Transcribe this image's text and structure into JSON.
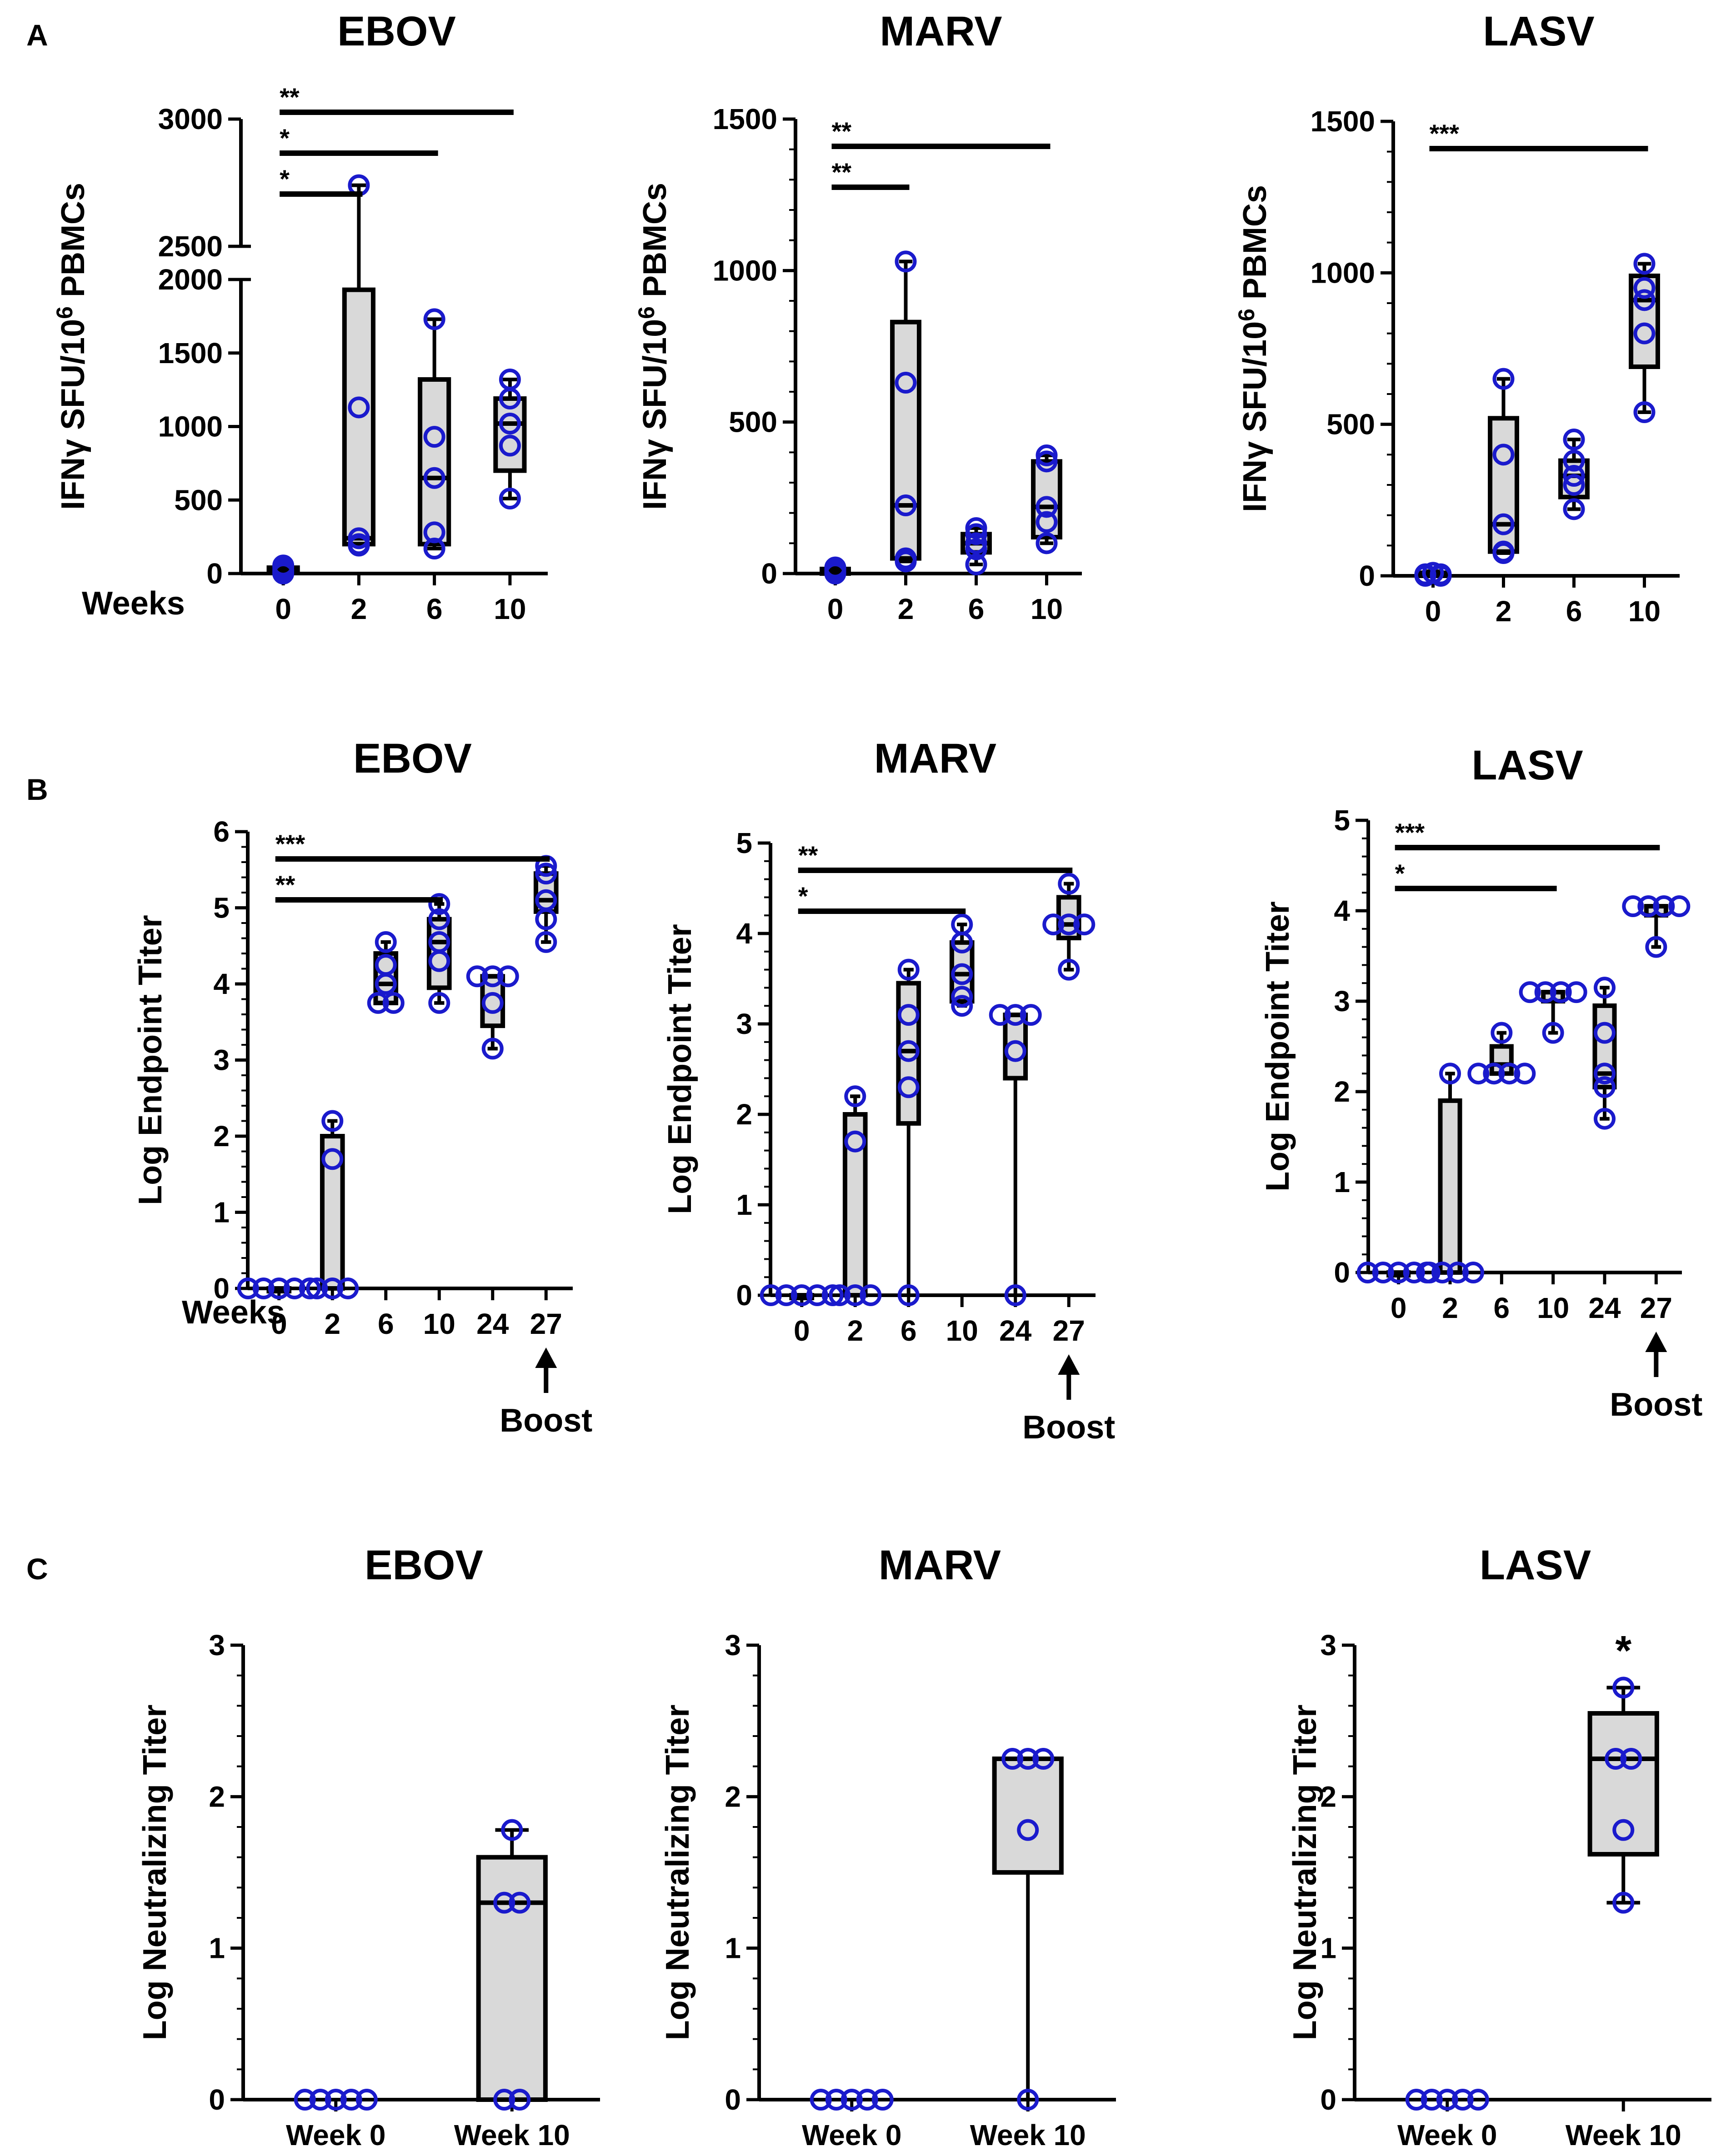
{
  "panel_letters": [
    "A",
    "B",
    "C"
  ],
  "style": {
    "box_fill": "#d9d9d9",
    "point_color": "#1a1acc",
    "line_color": "#000000"
  },
  "chart_data": [
    {
      "id": "A-EBOV",
      "panel": "A",
      "type": "box",
      "title": "EBOV",
      "ylabel": "IFNγ SFU/10^6 PBMCs",
      "xlabel": "Weeks",
      "categories": [
        "0",
        "2",
        "6",
        "10"
      ],
      "y_break": {
        "lower": [
          0,
          2000
        ],
        "upper": [
          2500,
          3000
        ]
      },
      "yticks_lower": [
        0,
        500,
        1000,
        1500,
        2000
      ],
      "yticks_upper": [
        2500,
        3000
      ],
      "boxes": [
        {
          "q1": 5,
          "median": 20,
          "q3": 40,
          "min": 0,
          "max": 55
        },
        {
          "q1": 200,
          "median": 240,
          "q3": 1930,
          "min": 190,
          "max": 2740
        },
        {
          "q1": 200,
          "median": 650,
          "q3": 1320,
          "min": 170,
          "max": 1730
        },
        {
          "q1": 700,
          "median": 1020,
          "q3": 1190,
          "min": 510,
          "max": 1320
        }
      ],
      "points": [
        [
          0,
          25,
          45,
          55,
          10
        ],
        [
          190,
          1130,
          240,
          200,
          2740
        ],
        [
          170,
          930,
          650,
          280,
          1730
        ],
        [
          510,
          870,
          1020,
          1190,
          1320
        ]
      ],
      "significance": [
        {
          "from": "0",
          "to": "10",
          "label": "**"
        },
        {
          "from": "0",
          "to": "6",
          "label": "*"
        },
        {
          "from": "0",
          "to": "2",
          "label": "*"
        }
      ]
    },
    {
      "id": "A-MARV",
      "panel": "A",
      "type": "box",
      "title": "MARV",
      "ylabel": "IFNγ SFU/10^6 PBMCs",
      "categories": [
        "0",
        "2",
        "6",
        "10"
      ],
      "ylim": [
        0,
        1500
      ],
      "yticks": [
        0,
        500,
        1000,
        1500
      ],
      "boxes": [
        {
          "q1": 0,
          "median": 5,
          "q3": 15,
          "min": 0,
          "max": 25
        },
        {
          "q1": 50,
          "median": 225,
          "q3": 830,
          "min": 40,
          "max": 1030
        },
        {
          "q1": 70,
          "median": 100,
          "q3": 130,
          "min": 30,
          "max": 150
        },
        {
          "q1": 120,
          "median": 220,
          "q3": 370,
          "min": 100,
          "max": 390
        }
      ],
      "points": [
        [
          0,
          10,
          20,
          5,
          15
        ],
        [
          40,
          630,
          225,
          50,
          1030
        ],
        [
          30,
          100,
          150,
          130,
          80
        ],
        [
          100,
          220,
          370,
          390,
          170
        ]
      ],
      "significance": [
        {
          "from": "0",
          "to": "10",
          "label": "**"
        },
        {
          "from": "0",
          "to": "2",
          "label": "**"
        }
      ]
    },
    {
      "id": "A-LASV",
      "panel": "A",
      "type": "box",
      "title": "LASV",
      "ylabel": "IFNγ SFU/10^6 PBMCs",
      "categories": [
        "0",
        "2",
        "6",
        "10"
      ],
      "ylim": [
        0,
        1500
      ],
      "yticks": [
        0,
        500,
        1000,
        1500
      ],
      "boxes": [
        {
          "q1": 0,
          "median": 5,
          "q3": 10,
          "min": 0,
          "max": 15
        },
        {
          "q1": 80,
          "median": 170,
          "q3": 520,
          "min": 75,
          "max": 650
        },
        {
          "q1": 260,
          "median": 330,
          "q3": 380,
          "min": 220,
          "max": 450
        },
        {
          "q1": 690,
          "median": 910,
          "q3": 990,
          "min": 540,
          "max": 1030
        }
      ],
      "points": [
        [
          0,
          5,
          10,
          0,
          5
        ],
        [
          75,
          400,
          170,
          80,
          650
        ],
        [
          220,
          330,
          380,
          450,
          300
        ],
        [
          540,
          800,
          910,
          950,
          1030
        ]
      ],
      "significance": [
        {
          "from": "0",
          "to": "10",
          "label": "***"
        }
      ]
    },
    {
      "id": "B-EBOV",
      "panel": "B",
      "type": "box",
      "title": "EBOV",
      "ylabel": "Log Endpoint Titer",
      "xlabel": "Weeks",
      "categories": [
        "0",
        "2",
        "6",
        "10",
        "24",
        "27"
      ],
      "ylim": [
        0,
        6
      ],
      "yticks": [
        0,
        1,
        2,
        3,
        4,
        5,
        6
      ],
      "boxes": [
        {
          "q1": 0,
          "median": 0,
          "q3": 0,
          "min": 0,
          "max": 0
        },
        {
          "q1": 0,
          "median": 0,
          "q3": 2.0,
          "min": 0,
          "max": 2.2
        },
        {
          "q1": 3.75,
          "median": 4.0,
          "q3": 4.4,
          "min": 3.75,
          "max": 4.55
        },
        {
          "q1": 3.95,
          "median": 4.55,
          "q3": 4.85,
          "min": 3.75,
          "max": 5.05
        },
        {
          "q1": 3.45,
          "median": 4.1,
          "q3": 4.1,
          "min": 3.15,
          "max": 4.1
        },
        {
          "q1": 4.95,
          "median": 5.1,
          "q3": 5.45,
          "min": 4.55,
          "max": 5.55
        }
      ],
      "points": [
        [
          0,
          0,
          0,
          0,
          0
        ],
        [
          0,
          1.7,
          2.2,
          0,
          0
        ],
        [
          3.75,
          4.0,
          4.25,
          4.55,
          3.75
        ],
        [
          3.75,
          4.3,
          4.55,
          4.85,
          5.05
        ],
        [
          3.15,
          3.75,
          4.1,
          4.1,
          4.1
        ],
        [
          4.55,
          4.85,
          5.1,
          5.45,
          5.55
        ]
      ],
      "significance": [
        {
          "from": "0",
          "to": "27",
          "label": "***"
        },
        {
          "from": "0",
          "to": "10",
          "label": "**"
        }
      ],
      "annotation": {
        "text": "Boost",
        "at": "27"
      }
    },
    {
      "id": "B-MARV",
      "panel": "B",
      "type": "box",
      "title": "MARV",
      "ylabel": "Log Endpoint Titer",
      "categories": [
        "0",
        "2",
        "6",
        "10",
        "24",
        "27"
      ],
      "ylim": [
        0,
        5
      ],
      "yticks": [
        0,
        1,
        2,
        3,
        4,
        5
      ],
      "boxes": [
        {
          "q1": 0,
          "median": 0,
          "q3": 0,
          "min": 0,
          "max": 0
        },
        {
          "q1": 0,
          "median": 0,
          "q3": 2.0,
          "min": 0,
          "max": 2.2
        },
        {
          "q1": 1.9,
          "median": 2.7,
          "q3": 3.45,
          "min": 0,
          "max": 3.6
        },
        {
          "q1": 3.25,
          "median": 3.55,
          "q3": 3.9,
          "min": 3.2,
          "max": 4.1
        },
        {
          "q1": 2.4,
          "median": 3.1,
          "q3": 3.1,
          "min": 0,
          "max": 3.1
        },
        {
          "q1": 3.95,
          "median": 4.1,
          "q3": 4.4,
          "min": 3.6,
          "max": 4.55
        }
      ],
      "points": [
        [
          0,
          0,
          0,
          0,
          0
        ],
        [
          0,
          1.7,
          2.2,
          0,
          0
        ],
        [
          0,
          2.3,
          2.7,
          3.1,
          3.6
        ],
        [
          3.2,
          3.55,
          3.9,
          4.1,
          3.3
        ],
        [
          0,
          2.7,
          3.1,
          3.1,
          3.1
        ],
        [
          3.6,
          4.1,
          4.1,
          4.1,
          4.55
        ]
      ],
      "significance": [
        {
          "from": "0",
          "to": "27",
          "label": "**"
        },
        {
          "from": "0",
          "to": "10",
          "label": "*"
        }
      ],
      "annotation": {
        "text": "Boost",
        "at": "27"
      }
    },
    {
      "id": "B-LASV",
      "panel": "B",
      "type": "box",
      "title": "LASV",
      "ylabel": "Log Endpoint Titer",
      "categories": [
        "0",
        "2",
        "6",
        "10",
        "24",
        "27"
      ],
      "ylim": [
        0,
        5
      ],
      "yticks": [
        0,
        1,
        2,
        3,
        4,
        5
      ],
      "boxes": [
        {
          "q1": 0,
          "median": 0,
          "q3": 0,
          "min": 0,
          "max": 0
        },
        {
          "q1": 0,
          "median": 0,
          "q3": 1.9,
          "min": 0,
          "max": 2.2
        },
        {
          "q1": 2.2,
          "median": 2.3,
          "q3": 2.5,
          "min": 2.2,
          "max": 2.65
        },
        {
          "q1": 3.0,
          "median": 3.1,
          "q3": 3.1,
          "min": 2.65,
          "max": 3.1
        },
        {
          "q1": 2.05,
          "median": 2.2,
          "q3": 2.95,
          "min": 1.7,
          "max": 3.15
        },
        {
          "q1": 3.95,
          "median": 4.05,
          "q3": 4.05,
          "min": 3.6,
          "max": 4.05
        }
      ],
      "points": [
        [
          0,
          0,
          0,
          0,
          0
        ],
        [
          0,
          0,
          2.2,
          0,
          0
        ],
        [
          2.2,
          2.2,
          2.2,
          2.2,
          2.65
        ],
        [
          2.65,
          3.1,
          3.1,
          3.1,
          3.1
        ],
        [
          1.7,
          2.05,
          2.2,
          2.65,
          3.15
        ],
        [
          3.6,
          4.05,
          4.05,
          4.05,
          4.05
        ]
      ],
      "significance": [
        {
          "from": "0",
          "to": "27",
          "label": "***"
        },
        {
          "from": "0",
          "to": "10",
          "label": "*"
        }
      ],
      "annotation": {
        "text": "Boost",
        "at": "27"
      }
    },
    {
      "id": "C-EBOV",
      "panel": "C",
      "type": "box",
      "title": "EBOV",
      "ylabel": "Log Neutralizing Titer",
      "categories": [
        "Week 0",
        "Week 10"
      ],
      "ylim": [
        0,
        3
      ],
      "yticks": [
        0,
        1,
        2,
        3
      ],
      "boxes": [
        null,
        {
          "q1": 0,
          "median": 1.3,
          "q3": 1.6,
          "min": 0,
          "max": 1.78
        }
      ],
      "points": [
        [
          0,
          0,
          0,
          0,
          0
        ],
        [
          0,
          0,
          1.3,
          1.3,
          1.78
        ]
      ],
      "significance": []
    },
    {
      "id": "C-MARV",
      "panel": "C",
      "type": "box",
      "title": "MARV",
      "ylabel": "Log Neutralizing Titer",
      "categories": [
        "Week 0",
        "Week 10"
      ],
      "ylim": [
        0,
        3
      ],
      "yticks": [
        0,
        1,
        2,
        3
      ],
      "boxes": [
        null,
        {
          "q1": 1.5,
          "median": 2.25,
          "q3": 2.25,
          "min": 0,
          "max": 2.25
        }
      ],
      "points": [
        [
          0,
          0,
          0,
          0,
          0
        ],
        [
          0,
          1.78,
          2.25,
          2.25,
          2.25
        ]
      ],
      "significance": []
    },
    {
      "id": "C-LASV",
      "panel": "C",
      "type": "box",
      "title": "LASV",
      "ylabel": "Log Neutralizing Titer",
      "categories": [
        "Week 0",
        "Week 10"
      ],
      "ylim": [
        0,
        3
      ],
      "yticks": [
        0,
        1,
        2,
        3
      ],
      "boxes": [
        null,
        {
          "q1": 1.62,
          "median": 2.25,
          "q3": 2.55,
          "min": 1.3,
          "max": 2.72
        }
      ],
      "points": [
        [
          0,
          0,
          0,
          0,
          0
        ],
        [
          1.3,
          1.78,
          2.25,
          2.25,
          2.72
        ]
      ],
      "significance": [],
      "top_annotation": {
        "text": "*",
        "at": "Week 10"
      }
    }
  ]
}
